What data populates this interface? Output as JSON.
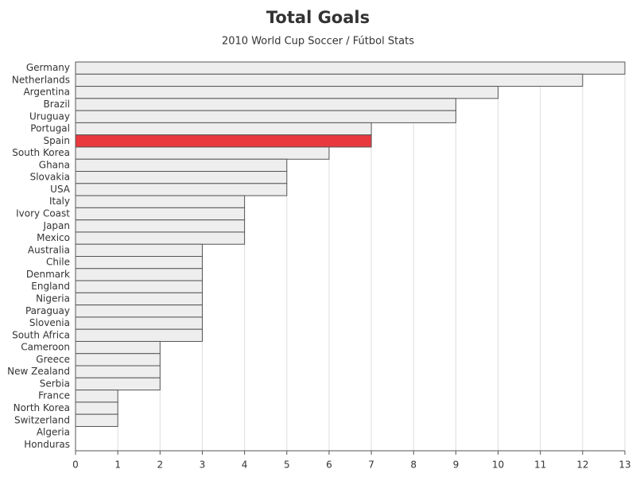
{
  "chart_data": {
    "type": "hbar",
    "title": "Total Goals",
    "subtitle": "2010 World Cup Soccer / Fútbol Stats",
    "categories": [
      "Germany",
      "Netherlands",
      "Argentina",
      "Brazil",
      "Uruguay",
      "Portugal",
      "Spain",
      "South Korea",
      "Ghana",
      "Slovakia",
      "USA",
      "Italy",
      "Ivory Coast",
      "Japan",
      "Mexico",
      "Australia",
      "Chile",
      "Denmark",
      "England",
      "Nigeria",
      "Paraguay",
      "Slovenia",
      "South Africa",
      "Cameroon",
      "Greece",
      "New Zealand",
      "Serbia",
      "France",
      "North Korea",
      "Switzerland",
      "Algeria",
      "Honduras"
    ],
    "values": [
      13,
      12,
      10,
      9,
      9,
      7,
      7,
      6,
      5,
      5,
      5,
      4,
      4,
      4,
      4,
      3,
      3,
      3,
      3,
      3,
      3,
      3,
      3,
      2,
      2,
      2,
      2,
      1,
      1,
      1,
      0,
      0
    ],
    "colors": [
      "#eeeeee",
      "#eeeeee",
      "#eeeeee",
      "#eeeeee",
      "#eeeeee",
      "#eeeeee",
      "#e8393e",
      "#eeeeee",
      "#eeeeee",
      "#eeeeee",
      "#eeeeee",
      "#eeeeee",
      "#eeeeee",
      "#eeeeee",
      "#eeeeee",
      "#eeeeee",
      "#eeeeee",
      "#eeeeee",
      "#eeeeee",
      "#eeeeee",
      "#eeeeee",
      "#eeeeee",
      "#eeeeee",
      "#eeeeee",
      "#eeeeee",
      "#eeeeee",
      "#eeeeee",
      "#eeeeee",
      "#eeeeee",
      "#eeeeee",
      "#eeeeee",
      "#eeeeee"
    ],
    "xlim": [
      0,
      13
    ],
    "xticks": [
      0,
      1,
      2,
      3,
      4,
      5,
      6,
      7,
      8,
      9,
      10,
      11,
      12,
      13
    ],
    "grid": true
  }
}
